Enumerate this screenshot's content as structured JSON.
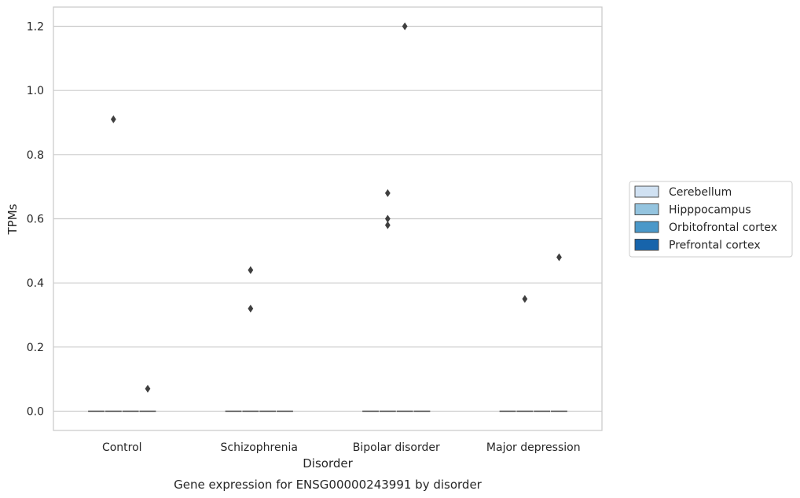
{
  "chart_data": {
    "type": "box",
    "caption": "Gene expression for ENSG00000243991 by disorder",
    "xlabel": "Disorder",
    "ylabel": "TPMs",
    "categories": [
      "Control",
      "Schizophrenia",
      "Bipolar disorder",
      "Major depression"
    ],
    "ylim": [
      -0.06,
      1.26
    ],
    "yticks": [
      0.0,
      0.2,
      0.4,
      0.6,
      0.8,
      1.0,
      1.2
    ],
    "ytick_labels": [
      "0.0",
      "0.2",
      "0.4",
      "0.6",
      "0.8",
      "1.0",
      "1.2"
    ],
    "grid": true,
    "legend": {
      "placement": "right",
      "entries": [
        {
          "name": "Cerebellum",
          "color": "#d0e1f2"
        },
        {
          "name": "Hipppocampus",
          "color": "#94c4df"
        },
        {
          "name": "Orbitofrontal cortex",
          "color": "#4a98c9"
        },
        {
          "name": "Prefrontal cortex",
          "color": "#1764ab"
        }
      ]
    },
    "series": [
      {
        "name": "Cerebellum",
        "color": "#d0e1f2",
        "median": [
          0,
          0,
          0,
          0
        ],
        "outliers": [
          [],
          [],
          [],
          []
        ]
      },
      {
        "name": "Hipppocampus",
        "color": "#94c4df",
        "median": [
          0,
          0,
          0,
          0
        ],
        "outliers": [
          [
            0.91
          ],
          [
            0.44,
            0.32
          ],
          [
            0.68,
            0.6,
            0.58
          ],
          [
            0.35
          ]
        ]
      },
      {
        "name": "Orbitofrontal cortex",
        "color": "#4a98c9",
        "median": [
          0,
          0,
          0,
          0
        ],
        "outliers": [
          [],
          [],
          [
            1.2
          ],
          []
        ]
      },
      {
        "name": "Prefrontal cortex",
        "color": "#1764ab",
        "median": [
          0,
          0,
          0,
          0
        ],
        "outliers": [
          [
            0.07
          ],
          [],
          [],
          [
            0.48
          ]
        ]
      }
    ]
  }
}
